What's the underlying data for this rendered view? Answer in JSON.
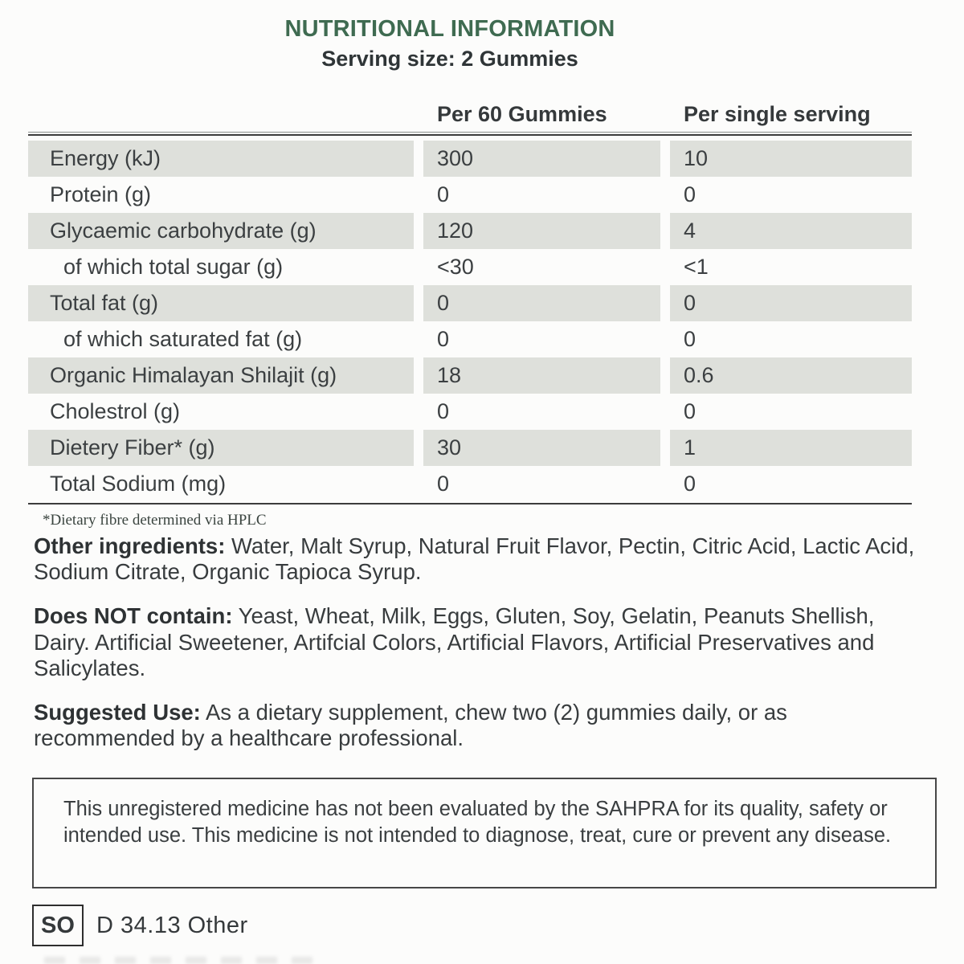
{
  "header": {
    "title": "NUTRITIONAL INFORMATION",
    "subtitle": "Serving size: 2 Gummies"
  },
  "table": {
    "columns": [
      "",
      "Per 60 Gummies",
      "Per single serving"
    ],
    "rows": [
      {
        "label": "Energy (kJ)",
        "per60": "300",
        "perServing": "10",
        "indent": false,
        "shaded": true
      },
      {
        "label": "Protein (g)",
        "per60": "0",
        "perServing": "0",
        "indent": false,
        "shaded": false
      },
      {
        "label": "Glycaemic carbohydrate (g)",
        "per60": "120",
        "perServing": "4",
        "indent": false,
        "shaded": true
      },
      {
        "label": "of which total sugar (g)",
        "per60": "<30",
        "perServing": "<1",
        "indent": true,
        "shaded": false
      },
      {
        "label": "Total fat (g)",
        "per60": "0",
        "perServing": "0",
        "indent": false,
        "shaded": true
      },
      {
        "label": "of which saturated fat (g)",
        "per60": "0",
        "perServing": "0",
        "indent": true,
        "shaded": false
      },
      {
        "label": "Organic Himalayan Shilajit (g)",
        "per60": "18",
        "perServing": "0.6",
        "indent": false,
        "shaded": true
      },
      {
        "label": "Cholestrol (g)",
        "per60": "0",
        "perServing": "0",
        "indent": false,
        "shaded": false
      },
      {
        "label": "Dietery Fiber* (g)",
        "per60": "30",
        "perServing": "1",
        "indent": false,
        "shaded": true
      },
      {
        "label": "Total Sodium (mg)",
        "per60": "0",
        "perServing": "0",
        "indent": false,
        "shaded": false
      }
    ],
    "footnote": "*Dietary fibre determined via HPLC"
  },
  "paragraphs": {
    "other_ingredients_label": "Other ingredients:",
    "other_ingredients_text": " Water, Malt Syrup, Natural Fruit Flavor, Pectin, Citric Acid, Lactic Acid, Sodium Citrate, Organic Tapioca Syrup.",
    "does_not_contain_label": "Does NOT contain:",
    "does_not_contain_text": " Yeast, Wheat, Milk, Eggs, Gluten, Soy, Gelatin, Peanuts Shellish, Dairy. Artificial Sweetener, Artifcial Colors, Artificial Flavors, Artificial Preservatives and Salicylates.",
    "suggested_use_label": "Suggested Use:",
    "suggested_use_text": " As a dietary supplement, chew two (2) gummies daily, or as recommended by a healthcare professional."
  },
  "disclaimer": {
    "text": "This unregistered medicine has not been evaluated by the SAHPRA for its quality, safety or intended use. This medicine is not intended to diagnose, treat, cure or prevent any disease."
  },
  "footer": {
    "badge": "SO",
    "text": "D 34.13 Other"
  },
  "colors": {
    "title_green": "#3f6b51",
    "text_dark": "#3b3f41",
    "row_shaded": "#dee0db",
    "line_dark": "#3c3c3c",
    "page_bg": "#fcfcfb"
  }
}
